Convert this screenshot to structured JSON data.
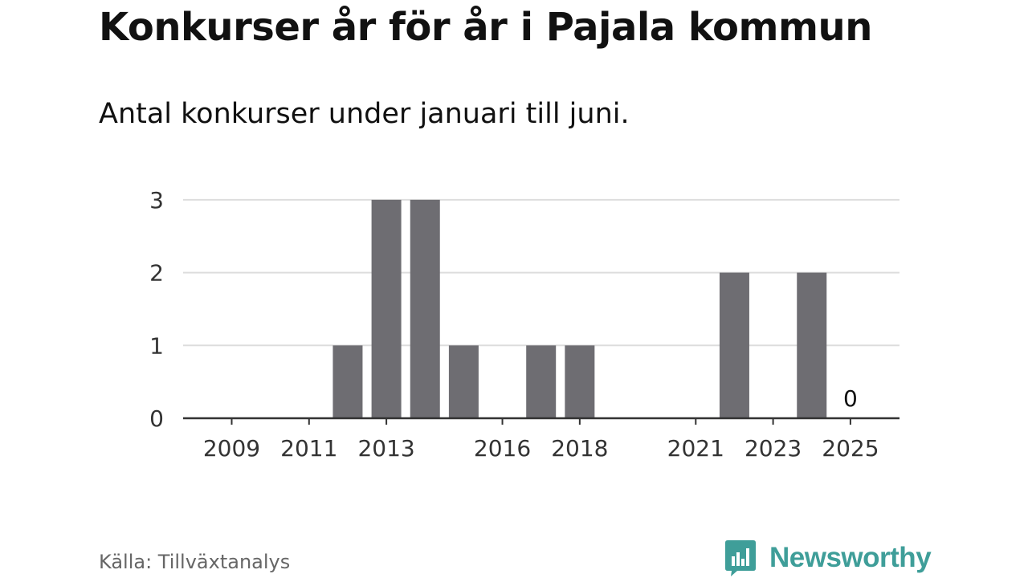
{
  "title": "Konkurser år för år i Pajala kommun",
  "subtitle": "Antal konkurser under januari till juni.",
  "source": "Källa: Tillväxtanalys",
  "brand": {
    "name": "Newsworthy",
    "color": "#3f9e99",
    "logo_icon": "speech-bubble-bar-chart-icon"
  },
  "chart_data": {
    "type": "bar",
    "categories": [
      "2009",
      "2010",
      "2011",
      "2012",
      "2013",
      "2014",
      "2015",
      "2016",
      "2017",
      "2018",
      "2019",
      "2020",
      "2021",
      "2022",
      "2023",
      "2024",
      "2025"
    ],
    "values": [
      0,
      0,
      0,
      1,
      3,
      3,
      1,
      0,
      1,
      1,
      0,
      0,
      0,
      2,
      0,
      2,
      0
    ],
    "x_tick_labels": [
      "2009",
      "2011",
      "2013",
      "2016",
      "2018",
      "2021",
      "2023",
      "2025"
    ],
    "y_ticks": [
      0,
      1,
      2,
      3
    ],
    "ylim": [
      0,
      3
    ],
    "grid": true,
    "bar_color": "#6e6d72",
    "annotations": [
      {
        "category": "2025",
        "label": "0"
      }
    ],
    "xlabel": "",
    "ylabel": ""
  }
}
